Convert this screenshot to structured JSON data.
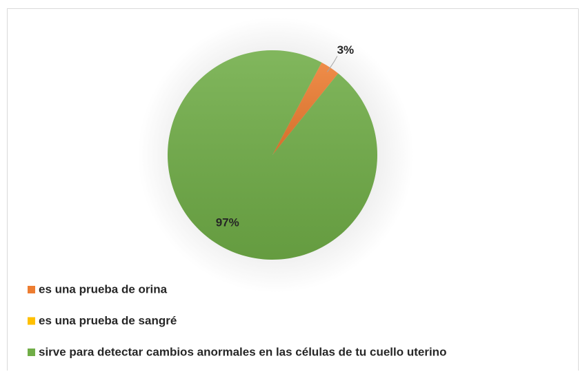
{
  "chart_data": {
    "type": "pie",
    "categories": [
      "es una prueba de orina",
      "es una prueba de sangré",
      "sirve para detectar cambios anormales en las células de tu cuello uterino"
    ],
    "values": [
      3,
      0,
      97
    ],
    "value_labels": [
      "3%",
      null,
      "97%"
    ],
    "colors": [
      "#ed7d31",
      "#ffc000",
      "#70ad47"
    ],
    "legend": "bottom"
  }
}
